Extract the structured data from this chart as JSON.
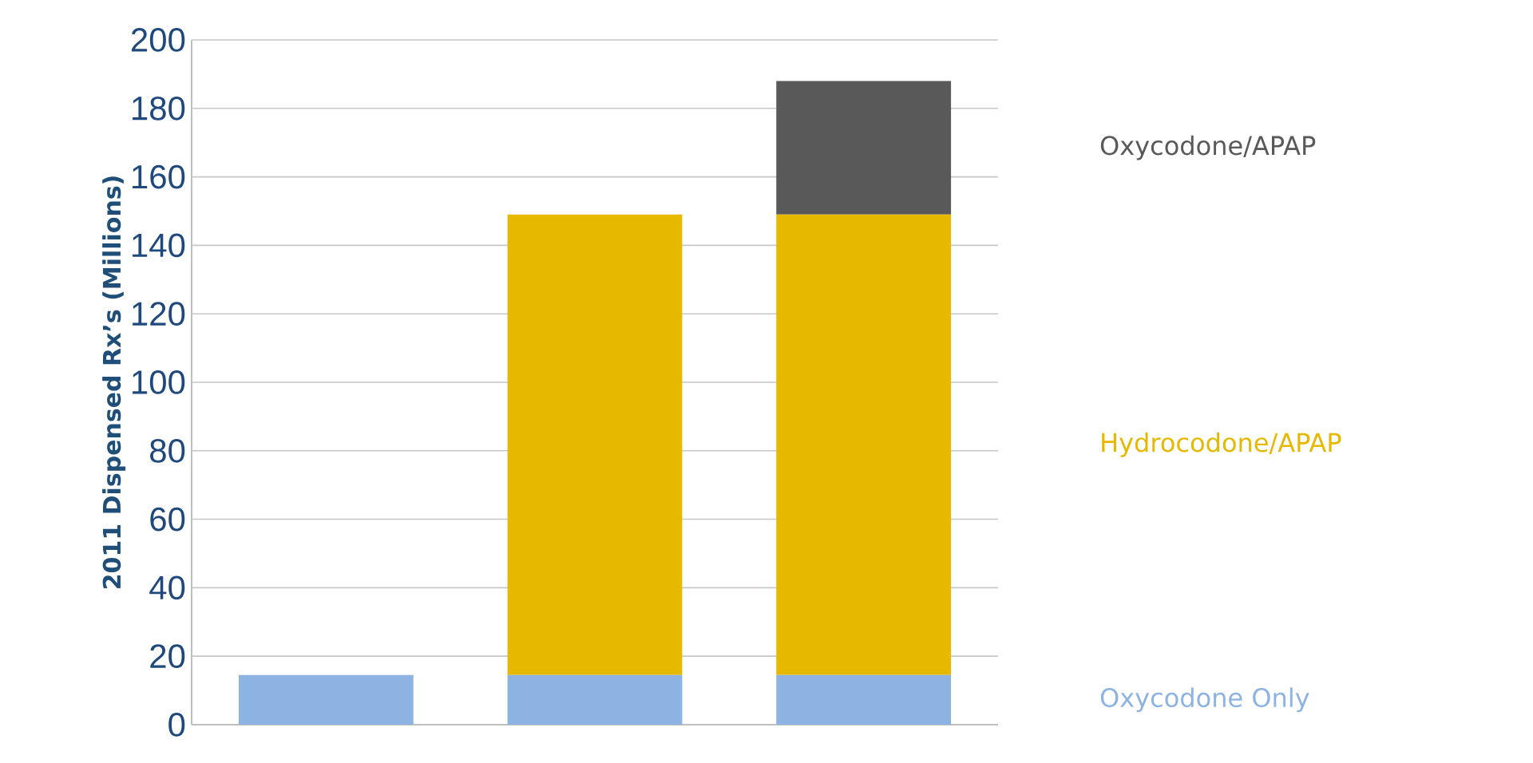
{
  "chart_data": {
    "type": "bar",
    "stacked": true,
    "ylabel": "2011 Dispensed Rx’s (Millions)",
    "categories": [
      null,
      null,
      null
    ],
    "series": [
      {
        "name": "Oxycodone Only",
        "color": "#8db3e2",
        "values": [
          14.5,
          14.5,
          14.5
        ]
      },
      {
        "name": "Hydrocodone/APAP",
        "color": "#e6b800",
        "values": [
          null,
          134.5,
          134.5
        ]
      },
      {
        "name": "Oxycodone/APAP",
        "color": "#595959",
        "values": [
          null,
          null,
          39
        ]
      }
    ],
    "ylim": [
      0,
      200
    ],
    "yticks": [
      0,
      20,
      40,
      60,
      80,
      100,
      120,
      140,
      160,
      180,
      200
    ],
    "grid": "y"
  }
}
